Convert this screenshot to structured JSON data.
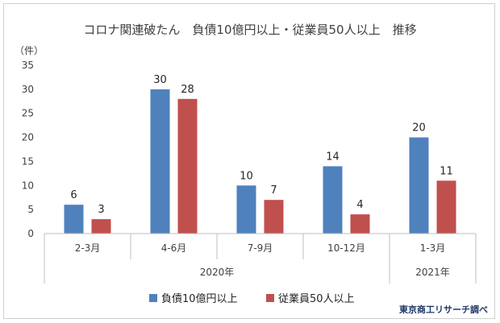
{
  "chart_data": {
    "type": "bar",
    "title": "コロナ関連破たん　負債10億円以上・従業員50人以上　推移",
    "ylabel": "（件）",
    "ylim": [
      0,
      35
    ],
    "yticks": [
      "0",
      "5",
      "10",
      "15",
      "20",
      "25",
      "30",
      "35"
    ],
    "categories": [
      "2-3月",
      "4-6月",
      "7-9月",
      "10-12月",
      "1-3月"
    ],
    "year_groups": [
      {
        "label": "2020年",
        "span": 4
      },
      {
        "label": "2021年",
        "span": 1
      }
    ],
    "series": [
      {
        "name": "負債10億円以上",
        "color": "#4f81bd",
        "values": [
          6,
          30,
          10,
          14,
          20
        ]
      },
      {
        "name": "従業員50人以上",
        "color": "#c0504d",
        "values": [
          3,
          28,
          7,
          4,
          11
        ]
      }
    ],
    "legend_position": "bottom",
    "grid": false,
    "credit": "東京商工リサーチ調べ"
  }
}
